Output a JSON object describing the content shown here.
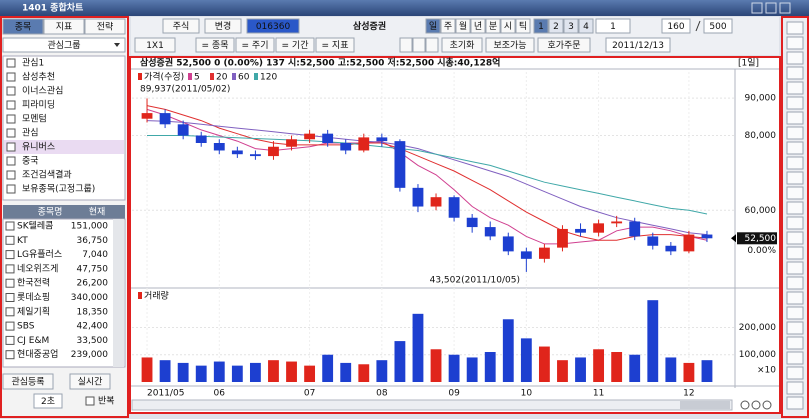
{
  "window": {
    "title": "1401 종합차트"
  },
  "left_panel": {
    "tabs": [
      "종목",
      "지표",
      "전략"
    ],
    "group_select": "관심그룹",
    "groups": [
      "관심1",
      "삼성추천",
      "이너스관심",
      "피라미딩",
      "모멘텀",
      "관심",
      "유니버스",
      "중국",
      "조건검색결과",
      "보유종목(고정그룹)"
    ],
    "table": {
      "headers": [
        "종목명",
        "현재"
      ],
      "rows": [
        [
          "SK텔레콤",
          "151,000"
        ],
        [
          "KT",
          "36,750"
        ],
        [
          "LG유플러스",
          "7,040"
        ],
        [
          "네오위즈게",
          "47,750"
        ],
        [
          "한국전력",
          "26,200"
        ],
        [
          "롯데쇼핑",
          "340,000"
        ],
        [
          "제일기획",
          "18,350"
        ],
        [
          "SBS",
          "42,400"
        ],
        [
          "CJ E&M",
          "33,500"
        ],
        [
          "현대중공업",
          "239,000"
        ]
      ]
    },
    "buttons": [
      "관심등록",
      "실시간"
    ],
    "interval": "2초",
    "repeat": "반복"
  },
  "toolbar": {
    "market": "주식",
    "change": "변경",
    "code": "016360",
    "name": "삼성증권",
    "periods": [
      "일",
      "주",
      "월",
      "년",
      "분",
      "시",
      "틱"
    ],
    "numbers": [
      "1",
      "2",
      "3",
      "4"
    ],
    "unit": "1",
    "count": "160",
    "total": "500",
    "layout": "1X1",
    "filters": [
      "= 종목",
      "= 주기",
      "= 기간",
      "= 지표"
    ],
    "actions": [
      "초기화",
      "보조가능",
      "호가주문"
    ],
    "date": "2011/12/13"
  },
  "chart_data": [
    {
      "type": "candlestick",
      "info": "삼성증권   52,500   0  (0.00%)   137   시:52,500  고:52,500  저:52,500  시총:40,128억",
      "period": "[1일]",
      "categories": [
        "2011/05",
        null,
        null,
        null,
        "06",
        null,
        null,
        null,
        null,
        "07",
        null,
        null,
        null,
        "08",
        null,
        null,
        null,
        "09",
        null,
        null,
        null,
        "10",
        null,
        null,
        null,
        "11",
        null,
        null,
        null,
        null,
        "12",
        null
      ],
      "price_series": {
        "name": "가격(수정)",
        "up_color": "#e0251b",
        "down_color": "#1d3fd0",
        "open": [
          84500,
          86000,
          83000,
          80000,
          78000,
          76000,
          75000,
          74500,
          77000,
          79000,
          80500,
          78000,
          76000,
          79500,
          78500,
          66000,
          61000,
          63500,
          58000,
          55500,
          53000,
          49000,
          47000,
          50000,
          55000,
          54000,
          56500,
          57000,
          53000,
          50500,
          49000,
          53500
        ],
        "high": [
          89937,
          87000,
          84000,
          81000,
          79000,
          77000,
          76000,
          78500,
          80000,
          81500,
          81500,
          79000,
          80500,
          80500,
          79000,
          67000,
          64500,
          64000,
          59000,
          57000,
          54000,
          50000,
          51000,
          56000,
          56500,
          57500,
          58500,
          58000,
          54000,
          51500,
          54500,
          54500
        ],
        "low": [
          83500,
          82000,
          79000,
          77000,
          75000,
          74000,
          73500,
          73500,
          76000,
          78000,
          77000,
          75000,
          75500,
          77000,
          65000,
          59500,
          60000,
          57000,
          54000,
          52000,
          48000,
          43502,
          46000,
          49000,
          53000,
          53000,
          55500,
          52000,
          49500,
          48000,
          48500,
          51500
        ],
        "close": [
          86000,
          83000,
          80000,
          78000,
          76000,
          75000,
          74500,
          77000,
          79000,
          80500,
          78000,
          76000,
          79500,
          78500,
          66000,
          61000,
          63500,
          58000,
          55500,
          53000,
          49000,
          47000,
          50000,
          55000,
          54000,
          56500,
          57000,
          53000,
          50500,
          49000,
          53500,
          52500
        ]
      },
      "series": [
        {
          "name": "5",
          "color": "#d04090",
          "values": [
            87000,
            85500,
            83500,
            81500,
            80000,
            78500,
            76500,
            76000,
            76500,
            77000,
            78000,
            78000,
            78000,
            78500,
            75500,
            72000,
            69500,
            65500,
            61000,
            58000,
            56000,
            53000,
            51000,
            51000,
            51500,
            52000,
            54500,
            55500,
            55500,
            54500,
            53000,
            52000
          ]
        },
        {
          "name": "20",
          "color": "#e03030",
          "values": [
            88000,
            87000,
            85500,
            84000,
            82000,
            80500,
            79000,
            78000,
            77500,
            77500,
            77500,
            77500,
            78000,
            78000,
            76500,
            74500,
            72500,
            70500,
            68000,
            65500,
            62500,
            59500,
            57000,
            54500,
            53000,
            52000,
            52000,
            53000,
            53500,
            53500,
            53000,
            52500
          ]
        },
        {
          "name": "60",
          "color": "#8060c0",
          "values": [
            84000,
            83800,
            83500,
            83000,
            82500,
            82000,
            81500,
            81000,
            80500,
            80000,
            79500,
            79000,
            78500,
            78200,
            77500,
            76500,
            75000,
            73500,
            72000,
            70500,
            69000,
            67000,
            65000,
            63000,
            61000,
            59500,
            58000,
            57000,
            56000,
            55000,
            54000,
            53500
          ]
        },
        {
          "name": "120",
          "color": "#40a8a8",
          "values": [
            80000,
            80000,
            80000,
            79800,
            79600,
            79400,
            79200,
            79000,
            78800,
            78600,
            78300,
            78000,
            77500,
            77000,
            76500,
            76000,
            75000,
            74000,
            73000,
            72000,
            70500,
            69000,
            67500,
            66500,
            65500,
            64500,
            63500,
            62500,
            61500,
            60500,
            60000,
            59000
          ]
        }
      ],
      "annotations": [
        "89,937(2011/05/02)",
        "43,502(2011/10/05)"
      ],
      "last_price": {
        "price": "52,500",
        "change": "0.00%"
      },
      "ylim": [
        40000,
        97000
      ],
      "yticks": [
        {
          "value": 90000,
          "label": "90,000"
        },
        {
          "value": 80000,
          "label": "80,000"
        },
        {
          "value": 60000,
          "label": "60,000"
        }
      ]
    },
    {
      "type": "bar",
      "title": "거래량",
      "color": "#e0251b",
      "unit": "×10",
      "values": [
        90000,
        80000,
        70000,
        60000,
        75000,
        60000,
        70000,
        80000,
        75000,
        60000,
        100000,
        70000,
        65000,
        80000,
        150000,
        250000,
        120000,
        100000,
        90000,
        110000,
        230000,
        160000,
        130000,
        80000,
        90000,
        120000,
        110000,
        100000,
        300000,
        90000,
        70000,
        80000
      ],
      "ylim": [
        0,
        330000
      ],
      "yticks": [
        {
          "value": 200000,
          "label": "200,000"
        },
        {
          "value": 100000,
          "label": "100,000"
        }
      ]
    }
  ]
}
